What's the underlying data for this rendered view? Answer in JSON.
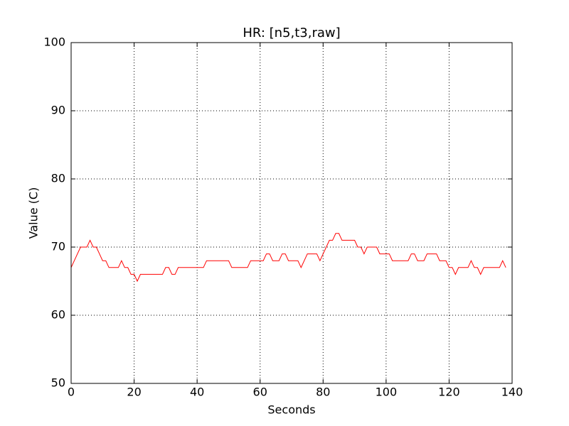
{
  "chart_data": {
    "type": "line",
    "title": "HR: [n5,t3,raw]",
    "xlabel": "Seconds",
    "ylabel": "Value (C)",
    "x": [
      0,
      1,
      2,
      3,
      4,
      5,
      6,
      7,
      8,
      9,
      10,
      11,
      12,
      13,
      14,
      15,
      16,
      17,
      18,
      19,
      20,
      21,
      22,
      23,
      24,
      25,
      26,
      27,
      28,
      29,
      30,
      31,
      32,
      33,
      34,
      35,
      36,
      37,
      38,
      39,
      40,
      41,
      42,
      43,
      44,
      45,
      46,
      47,
      48,
      49,
      50,
      51,
      52,
      53,
      54,
      55,
      56,
      57,
      58,
      59,
      60,
      61,
      62,
      63,
      64,
      65,
      66,
      67,
      68,
      69,
      70,
      71,
      72,
      73,
      74,
      75,
      76,
      77,
      78,
      79,
      80,
      81,
      82,
      83,
      84,
      85,
      86,
      87,
      88,
      89,
      90,
      91,
      92,
      93,
      94,
      95,
      96,
      97,
      98,
      99,
      100,
      101,
      102,
      103,
      104,
      105,
      106,
      107,
      108,
      109,
      110,
      111,
      112,
      113,
      114,
      115,
      116,
      117,
      118,
      119,
      120,
      121,
      122,
      123,
      124,
      125,
      126,
      127,
      128,
      129,
      130,
      131,
      132,
      133,
      134,
      135,
      136,
      137,
      138
    ],
    "values": [
      67,
      68,
      69,
      70,
      70,
      70,
      71,
      70,
      70,
      69,
      68,
      68,
      67,
      67,
      67,
      67,
      68,
      67,
      67,
      66,
      66,
      65,
      66,
      66,
      66,
      66,
      66,
      66,
      66,
      66,
      67,
      67,
      66,
      66,
      67,
      67,
      67,
      67,
      67,
      67,
      67,
      67,
      67,
      68,
      68,
      68,
      68,
      68,
      68,
      68,
      68,
      67,
      67,
      67,
      67,
      67,
      67,
      68,
      68,
      68,
      68,
      68,
      69,
      69,
      68,
      68,
      68,
      69,
      69,
      68,
      68,
      68,
      68,
      67,
      68,
      69,
      69,
      69,
      69,
      68,
      69,
      70,
      71,
      71,
      72,
      72,
      71,
      71,
      71,
      71,
      71,
      70,
      70,
      69,
      70,
      70,
      70,
      70,
      69,
      69,
      69,
      69,
      68,
      68,
      68,
      68,
      68,
      68,
      69,
      69,
      68,
      68,
      68,
      69,
      69,
      69,
      69,
      68,
      68,
      68,
      67,
      67,
      66,
      67,
      67,
      67,
      67,
      68,
      67,
      67,
      66,
      67,
      67,
      67,
      67,
      67,
      67,
      68,
      67
    ],
    "color": "#ff0000",
    "xlim": [
      0,
      140
    ],
    "xticks": [
      0,
      20,
      40,
      60,
      80,
      100,
      120,
      140
    ],
    "ylim": [
      50,
      100
    ],
    "yticks": [
      50,
      60,
      70,
      80,
      90,
      100
    ],
    "grid": true
  }
}
